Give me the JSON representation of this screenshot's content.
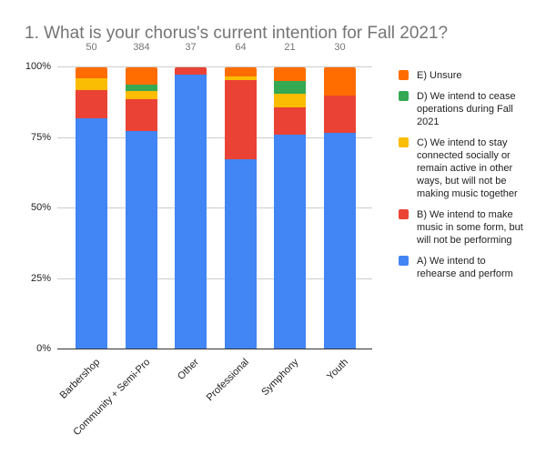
{
  "chart_data": {
    "type": "bar",
    "stacked": true,
    "normalized": true,
    "title": "1. What is your chorus's current intention for Fall 2021?",
    "xlabel": "",
    "ylabel": "",
    "ylim": [
      0,
      100
    ],
    "yticks": [
      "0%",
      "25%",
      "50%",
      "75%",
      "100%"
    ],
    "grid": true,
    "legend_position": "right",
    "categories": [
      "Barbershop",
      "Community + Semi-Pro",
      "Other",
      "Professional",
      "Symphony",
      "Youth"
    ],
    "totals": [
      50,
      384,
      37,
      64,
      21,
      30
    ],
    "series": [
      {
        "name": "A) We intend to rehearse and perform",
        "color": "#4285f4",
        "values": [
          41,
          297,
          36,
          43,
          16,
          23
        ]
      },
      {
        "name": "B) We intend to make music in some form, but will not be performing",
        "color": "#ea4335",
        "values": [
          5,
          44,
          1,
          18,
          2,
          4
        ]
      },
      {
        "name": "C) We intend to stay connected socially or remain active in other ways, but will not be making music together",
        "color": "#fbbc04",
        "values": [
          2,
          11,
          0,
          1,
          1,
          0
        ]
      },
      {
        "name": "D) We intend to cease operations during Fall 2021",
        "color": "#34a853",
        "values": [
          0,
          9,
          0,
          0,
          1,
          0
        ]
      },
      {
        "name": "E) Unsure",
        "color": "#ff6d01",
        "values": [
          2,
          23,
          0,
          2,
          1,
          3
        ]
      }
    ]
  },
  "title": "1. What is your chorus's current intention for Fall 2021?",
  "counts": [
    "50",
    "384",
    "37",
    "64",
    "21",
    "30"
  ],
  "yticks": [
    "100%",
    "75%",
    "50%",
    "25%",
    "0%"
  ],
  "categories": [
    "Barbershop",
    "Community + Semi-Pro",
    "Other",
    "Professional",
    "Symphony",
    "Youth"
  ],
  "legend": [
    {
      "label": "E) Unsure",
      "color": "#ff6d01"
    },
    {
      "label": "D) We intend to cease operations during Fall 2021",
      "color": "#34a853"
    },
    {
      "label": "C) We intend to stay connected socially or remain active in other ways, but will not be making music together",
      "color": "#fbbc04"
    },
    {
      "label": "B) We intend to make music in some form, but will not be performing",
      "color": "#ea4335"
    },
    {
      "label": "A) We intend to rehearse and perform",
      "color": "#4285f4"
    }
  ]
}
